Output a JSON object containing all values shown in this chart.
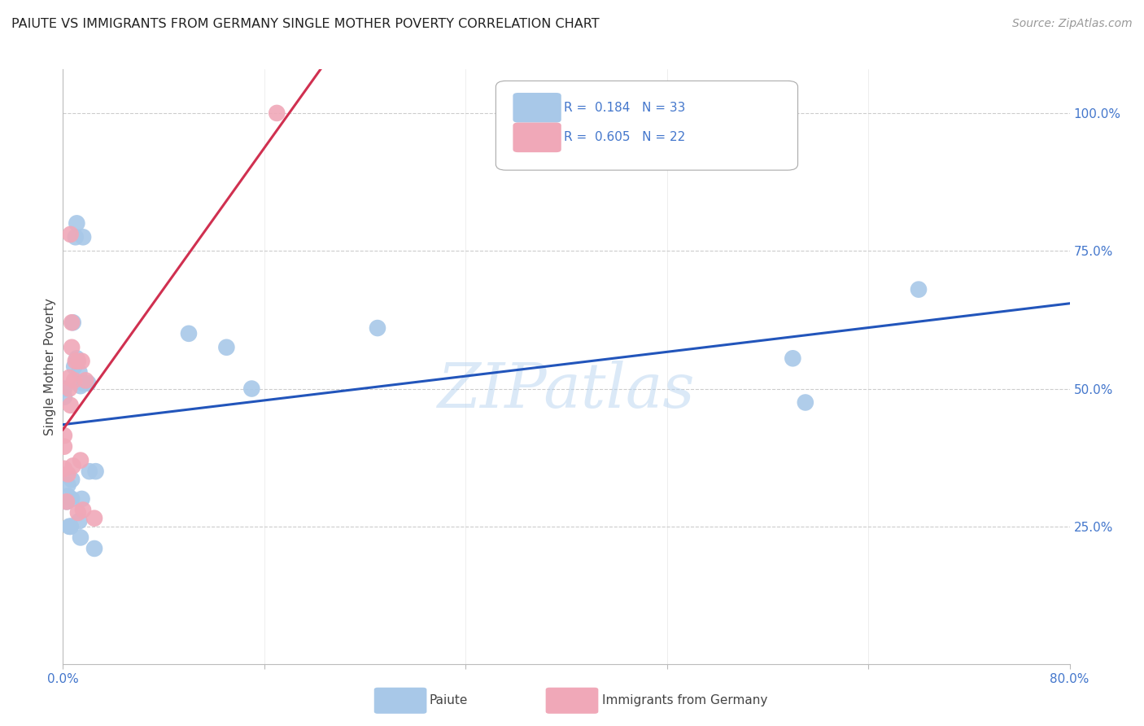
{
  "title": "PAIUTE VS IMMIGRANTS FROM GERMANY SINGLE MOTHER POVERTY CORRELATION CHART",
  "source": "Source: ZipAtlas.com",
  "ylabel": "Single Mother Poverty",
  "legend_blue_R": "0.184",
  "legend_blue_N": "33",
  "legend_pink_R": "0.605",
  "legend_pink_N": "22",
  "blue_scatter_color": "#a8c8e8",
  "pink_scatter_color": "#f0a8b8",
  "blue_line_color": "#2255bb",
  "pink_line_color": "#d03050",
  "watermark": "ZIPatlas",
  "paiute_x": [
    0.001,
    0.001,
    0.003,
    0.004,
    0.004,
    0.005,
    0.006,
    0.006,
    0.007,
    0.007,
    0.008,
    0.009,
    0.01,
    0.011,
    0.011,
    0.013,
    0.013,
    0.014,
    0.014,
    0.015,
    0.016,
    0.016,
    0.02,
    0.021,
    0.025,
    0.026,
    0.1,
    0.13,
    0.15,
    0.25,
    0.58,
    0.59,
    0.68
  ],
  "paiute_y": [
    0.485,
    0.5,
    0.295,
    0.325,
    0.305,
    0.25,
    0.25,
    0.25,
    0.3,
    0.335,
    0.62,
    0.54,
    0.775,
    0.8,
    0.555,
    0.53,
    0.26,
    0.23,
    0.505,
    0.3,
    0.51,
    0.775,
    0.51,
    0.35,
    0.21,
    0.35,
    0.6,
    0.575,
    0.5,
    0.61,
    0.555,
    0.475,
    0.68
  ],
  "germany_x": [
    0.001,
    0.001,
    0.001,
    0.003,
    0.004,
    0.005,
    0.005,
    0.006,
    0.006,
    0.007,
    0.007,
    0.008,
    0.009,
    0.01,
    0.012,
    0.012,
    0.014,
    0.015,
    0.016,
    0.018,
    0.025,
    0.17
  ],
  "germany_y": [
    0.355,
    0.395,
    0.415,
    0.295,
    0.345,
    0.52,
    0.5,
    0.47,
    0.78,
    0.62,
    0.575,
    0.36,
    0.515,
    0.55,
    0.55,
    0.275,
    0.37,
    0.55,
    0.28,
    0.515,
    0.265,
    1.0
  ],
  "xmin": 0.0,
  "xmax": 0.8,
  "ymin": 0.0,
  "ymax": 1.08,
  "yticks": [
    0.25,
    0.5,
    0.75,
    1.0
  ],
  "ytick_labels": [
    "25.0%",
    "50.0%",
    "75.0%",
    "100.0%"
  ],
  "xtick_positions": [
    0.0,
    0.16,
    0.32,
    0.48,
    0.64,
    0.8
  ],
  "xtick_labels": [
    "0.0%",
    "",
    "",
    "",
    "",
    "80.0%"
  ]
}
